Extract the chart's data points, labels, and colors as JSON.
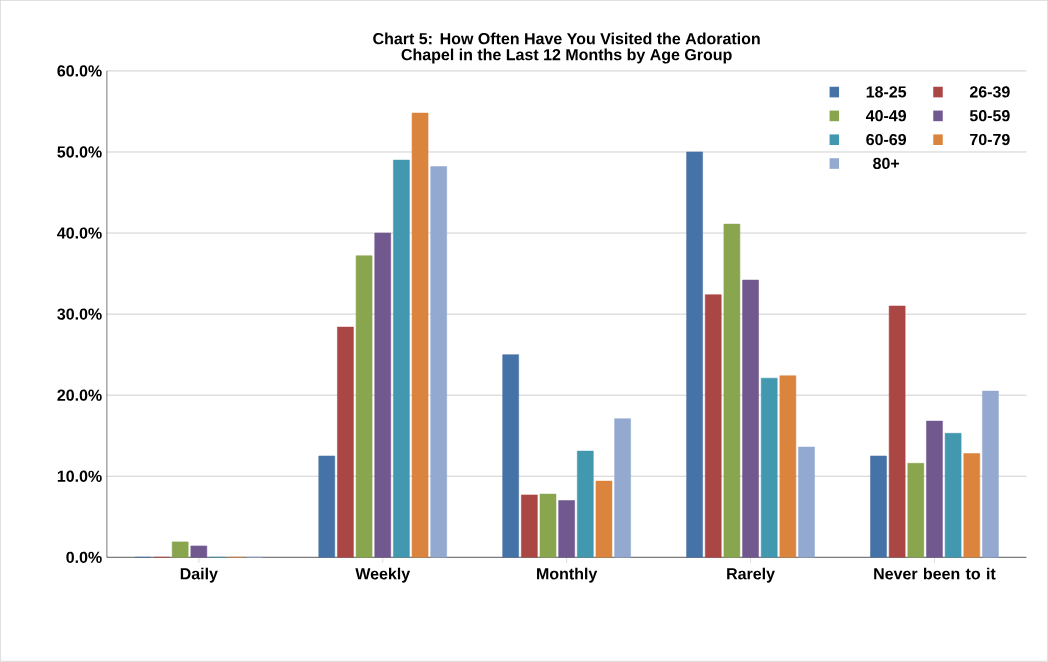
{
  "chart_data": {
    "type": "bar",
    "title": "Chart 5: How Often Have You Visited the Adoration Chapel in the Last 12 Months by Age Group",
    "categories": [
      "Daily",
      "Weekly",
      "Monthly",
      "Rarely",
      "Never been to it"
    ],
    "series": [
      {
        "name": "18-25",
        "color": "#4572a7",
        "values": [
          0,
          12.5,
          25.0,
          50.0,
          12.5
        ]
      },
      {
        "name": "26-39",
        "color": "#aa4643",
        "values": [
          0,
          28.4,
          7.7,
          32.4,
          31.0
        ]
      },
      {
        "name": "40-49",
        "color": "#89a54e",
        "values": [
          1.9,
          37.2,
          7.8,
          41.1,
          11.6
        ]
      },
      {
        "name": "50-59",
        "color": "#71588f",
        "values": [
          1.4,
          40.0,
          7.0,
          34.2,
          16.8
        ]
      },
      {
        "name": "60-69",
        "color": "#4198af",
        "values": [
          0,
          49.0,
          13.1,
          22.1,
          15.3
        ]
      },
      {
        "name": "70-79",
        "color": "#db843d",
        "values": [
          0,
          54.8,
          9.4,
          22.4,
          12.8
        ]
      },
      {
        "name": "80+",
        "color": "#93a9cf",
        "values": [
          0,
          48.2,
          17.1,
          13.6,
          20.5
        ]
      }
    ],
    "ylim": [
      0,
      60
    ],
    "yticks": [
      {
        "value": 0,
        "label": "0.0%"
      },
      {
        "value": 10,
        "label": "10.0%"
      },
      {
        "value": 20,
        "label": "20.0%"
      },
      {
        "value": 30,
        "label": "30.0%"
      },
      {
        "value": 40,
        "label": "40.0%"
      },
      {
        "value": 50,
        "label": "50.0%"
      },
      {
        "value": 60,
        "label": "60.0%"
      }
    ],
    "grid": "y",
    "legend": "top right"
  }
}
